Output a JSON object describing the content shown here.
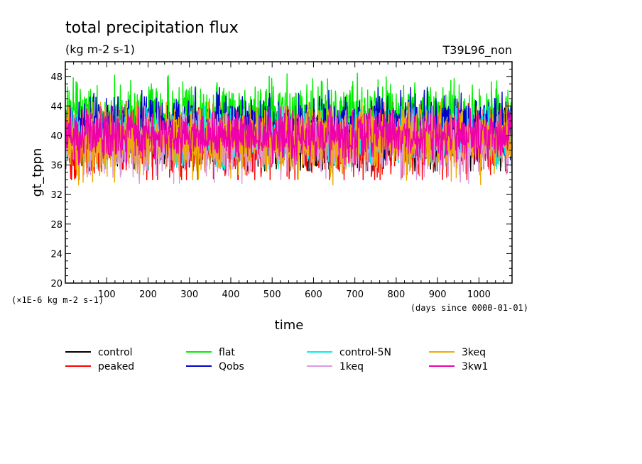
{
  "chart_data": {
    "type": "line",
    "title": "total precipitation flux",
    "units": "(kg m-2 s-1)",
    "experiment": "T39L96_non",
    "ylabel": "gt_tppn",
    "xlabel": "time",
    "x_units": "(days since 0000-01-01)",
    "y_scale_note": "(×1E-6 kg m-2 s-1)",
    "xlim": [
      0,
      1080
    ],
    "ylim": [
      20,
      50
    ],
    "x_ticks": [
      100,
      200,
      300,
      400,
      500,
      600,
      700,
      800,
      900,
      1000
    ],
    "y_ticks": [
      20,
      24,
      28,
      32,
      36,
      40,
      44,
      48
    ],
    "x_tick_labels": [
      "100",
      "200",
      "300",
      "400",
      "500",
      "600",
      "700",
      "800",
      "900",
      "1000"
    ],
    "y_tick_labels": [
      "20",
      "24",
      "28",
      "32",
      "36",
      "40",
      "44",
      "48"
    ],
    "series": [
      {
        "name": "control",
        "color": "#000000",
        "mean": 39.5,
        "spread": 2.2,
        "min": 35.2,
        "max": 44.0
      },
      {
        "name": "peaked",
        "color": "#ff0000",
        "mean": 39.0,
        "spread": 2.5,
        "min": 34.0,
        "max": 44.5
      },
      {
        "name": "flat",
        "color": "#00ee00",
        "mean": 42.5,
        "spread": 2.3,
        "min": 37.5,
        "max": 49.0
      },
      {
        "name": "Qobs",
        "color": "#0000cc",
        "mean": 41.5,
        "spread": 2.0,
        "min": 36.5,
        "max": 46.5
      },
      {
        "name": "control-5N",
        "color": "#00eeee",
        "mean": 39.5,
        "spread": 2.0,
        "min": 35.5,
        "max": 44.0
      },
      {
        "name": "1keq",
        "color": "#dd99dd",
        "mean": 39.0,
        "spread": 2.2,
        "min": 33.5,
        "max": 44.0
      },
      {
        "name": "3keq",
        "color": "#eeaa00",
        "mean": 39.5,
        "spread": 2.3,
        "min": 33.3,
        "max": 44.5
      },
      {
        "name": "3kw1",
        "color": "#ee00aa",
        "mean": 40.0,
        "spread": 1.8,
        "min": 36.0,
        "max": 44.0
      }
    ]
  }
}
